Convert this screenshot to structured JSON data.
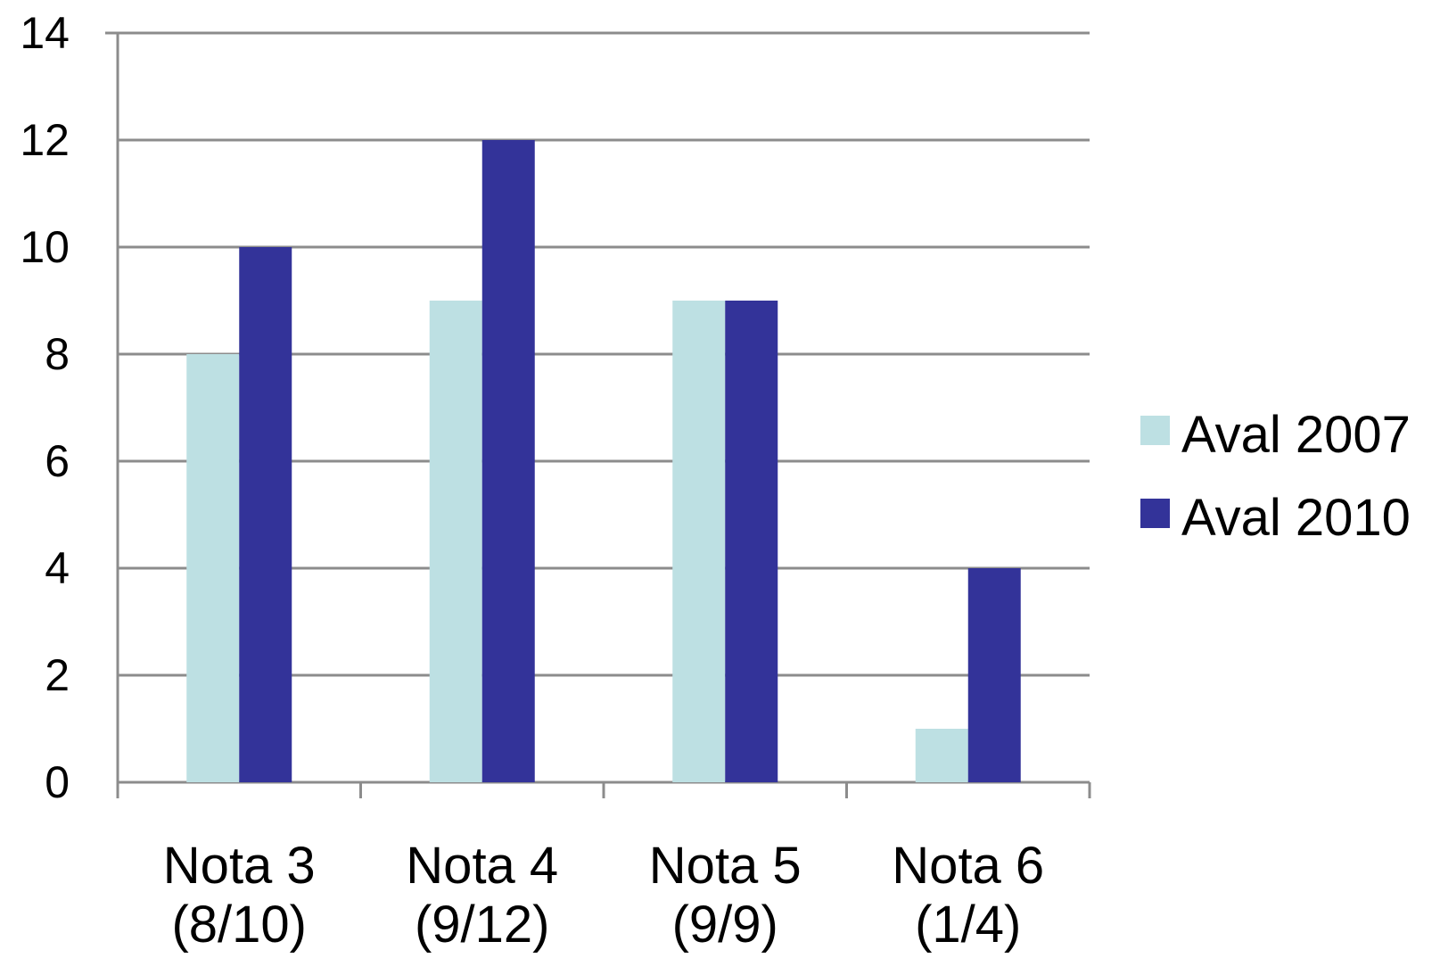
{
  "chart_data": {
    "type": "bar",
    "categories": [
      [
        "Nota 3",
        "(8/10)"
      ],
      [
        "Nota 4",
        "(9/12)"
      ],
      [
        "Nota 5",
        "(9/9)"
      ],
      [
        "Nota 6",
        "(1/4)"
      ]
    ],
    "series": [
      {
        "name": "Aval 2007",
        "values": [
          8,
          9,
          9,
          1
        ],
        "color": "#bde0e3"
      },
      {
        "name": "Aval 2010",
        "values": [
          10,
          12,
          9,
          4
        ],
        "color": "#333399"
      }
    ],
    "ylim": [
      0,
      14
    ],
    "yticks": [
      0,
      2,
      4,
      6,
      8,
      10,
      12,
      14
    ],
    "grid": true,
    "legend_position": "right",
    "title": "",
    "xlabel": "",
    "ylabel": ""
  }
}
